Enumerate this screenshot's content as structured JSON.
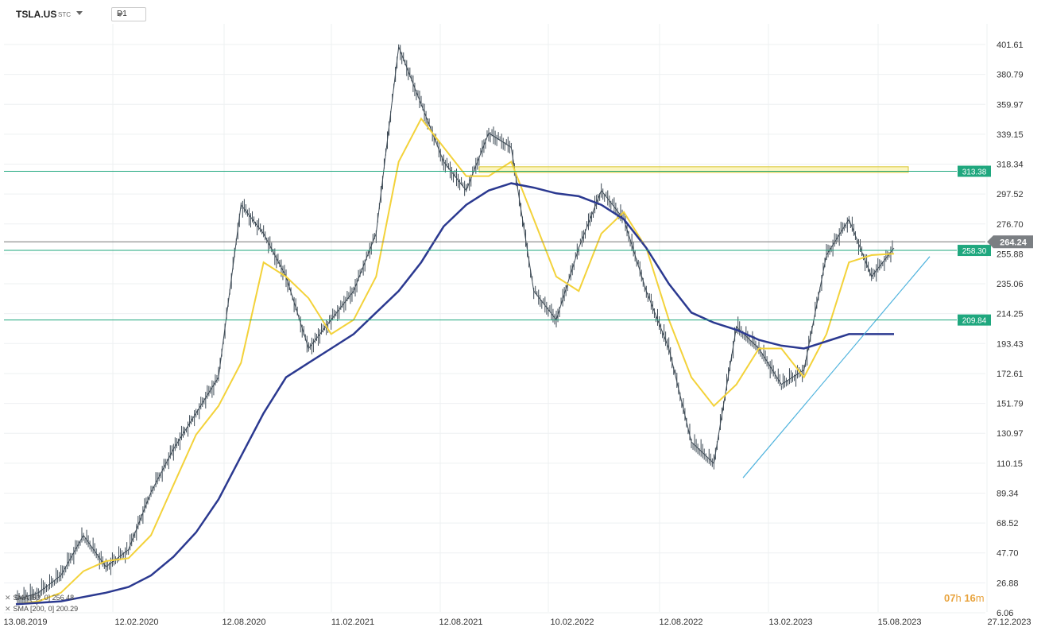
{
  "header": {
    "symbol": "TSLA.US",
    "source": "STC",
    "timeframe": "D1"
  },
  "indicators": [
    {
      "label": "SMA [50, 0] 256.48"
    },
    {
      "label": "SMA [200, 0] 200.29"
    }
  ],
  "timer": {
    "hours": "07",
    "h": "h",
    "minutes": "16",
    "m": "m"
  },
  "colors": {
    "candles": "#3d4a55",
    "sma50": "#f3d23a",
    "sma200": "#2b3990",
    "level": "#1fa77e",
    "trend": "#4fb3dd",
    "zone": "#f3e24a",
    "current": "#777777"
  },
  "chart_data": {
    "type": "line",
    "title": "",
    "xlabel": "",
    "ylabel": "",
    "ylim": [
      6.06,
      420
    ],
    "y_ticks": [
      "401.61",
      "380.79",
      "359.97",
      "339.15",
      "318.34",
      "297.52",
      "276.70",
      "255.88",
      "235.06",
      "214.25",
      "193.43",
      "172.61",
      "151.79",
      "130.97",
      "110.15",
      "89.34",
      "68.52",
      "47.70",
      "26.88",
      "6.06"
    ],
    "x_ticks": [
      "13.08.2019",
      "12.02.2020",
      "12.08.2020",
      "11.02.2021",
      "12.08.2021",
      "10.02.2022",
      "12.08.2022",
      "13.02.2023",
      "15.08.2023",
      "27.12.2023"
    ],
    "price_label": "264.24",
    "price_value": 264.24,
    "levels": [
      {
        "label": "313.38",
        "value": 313.38
      },
      {
        "label": "258.30",
        "value": 258.3
      },
      {
        "label": "209.84",
        "value": 209.84
      }
    ],
    "series": [
      {
        "name": "TSLA.US",
        "x": [
          "2019-08",
          "2019-11",
          "2020-01",
          "2020-02",
          "2020-03",
          "2020-05",
          "2020-07",
          "2020-08",
          "2020-09",
          "2020-11",
          "2021-01",
          "2021-02",
          "2021-03",
          "2021-05",
          "2021-06",
          "2021-08",
          "2021-10",
          "2021-11",
          "2021-12",
          "2022-01",
          "2022-02",
          "2022-03",
          "2022-04",
          "2022-05",
          "2022-06",
          "2022-07",
          "2022-08",
          "2022-09",
          "2022-10",
          "2022-11",
          "2022-12",
          "2023-01",
          "2023-02",
          "2023-03",
          "2023-04",
          "2023-05",
          "2023-06",
          "2023-07",
          "2023-08",
          "2023-09"
        ],
        "values": [
          15,
          20,
          32,
          60,
          38,
          50,
          90,
          120,
          145,
          170,
          290,
          270,
          240,
          190,
          210,
          230,
          270,
          400,
          360,
          320,
          300,
          340,
          330,
          230,
          210,
          260,
          300,
          280,
          230,
          190,
          125,
          110,
          205,
          190,
          165,
          175,
          255,
          280,
          240,
          260
        ]
      },
      {
        "name": "SMA [50, 0]",
        "values": [
          12,
          14,
          20,
          35,
          42,
          44,
          60,
          95,
          130,
          150,
          180,
          250,
          240,
          225,
          200,
          210,
          240,
          320,
          350,
          330,
          310,
          310,
          320,
          280,
          240,
          230,
          270,
          285,
          260,
          210,
          170,
          150,
          165,
          190,
          190,
          170,
          200,
          250,
          255,
          256
        ]
      },
      {
        "name": "SMA [200, 0]",
        "values": [
          12,
          13,
          14,
          17,
          20,
          24,
          32,
          45,
          62,
          85,
          115,
          145,
          170,
          180,
          190,
          200,
          215,
          230,
          250,
          275,
          290,
          300,
          305,
          302,
          298,
          296,
          290,
          280,
          260,
          235,
          215,
          208,
          203,
          196,
          192,
          190,
          195,
          200,
          200,
          200
        ]
      }
    ]
  }
}
